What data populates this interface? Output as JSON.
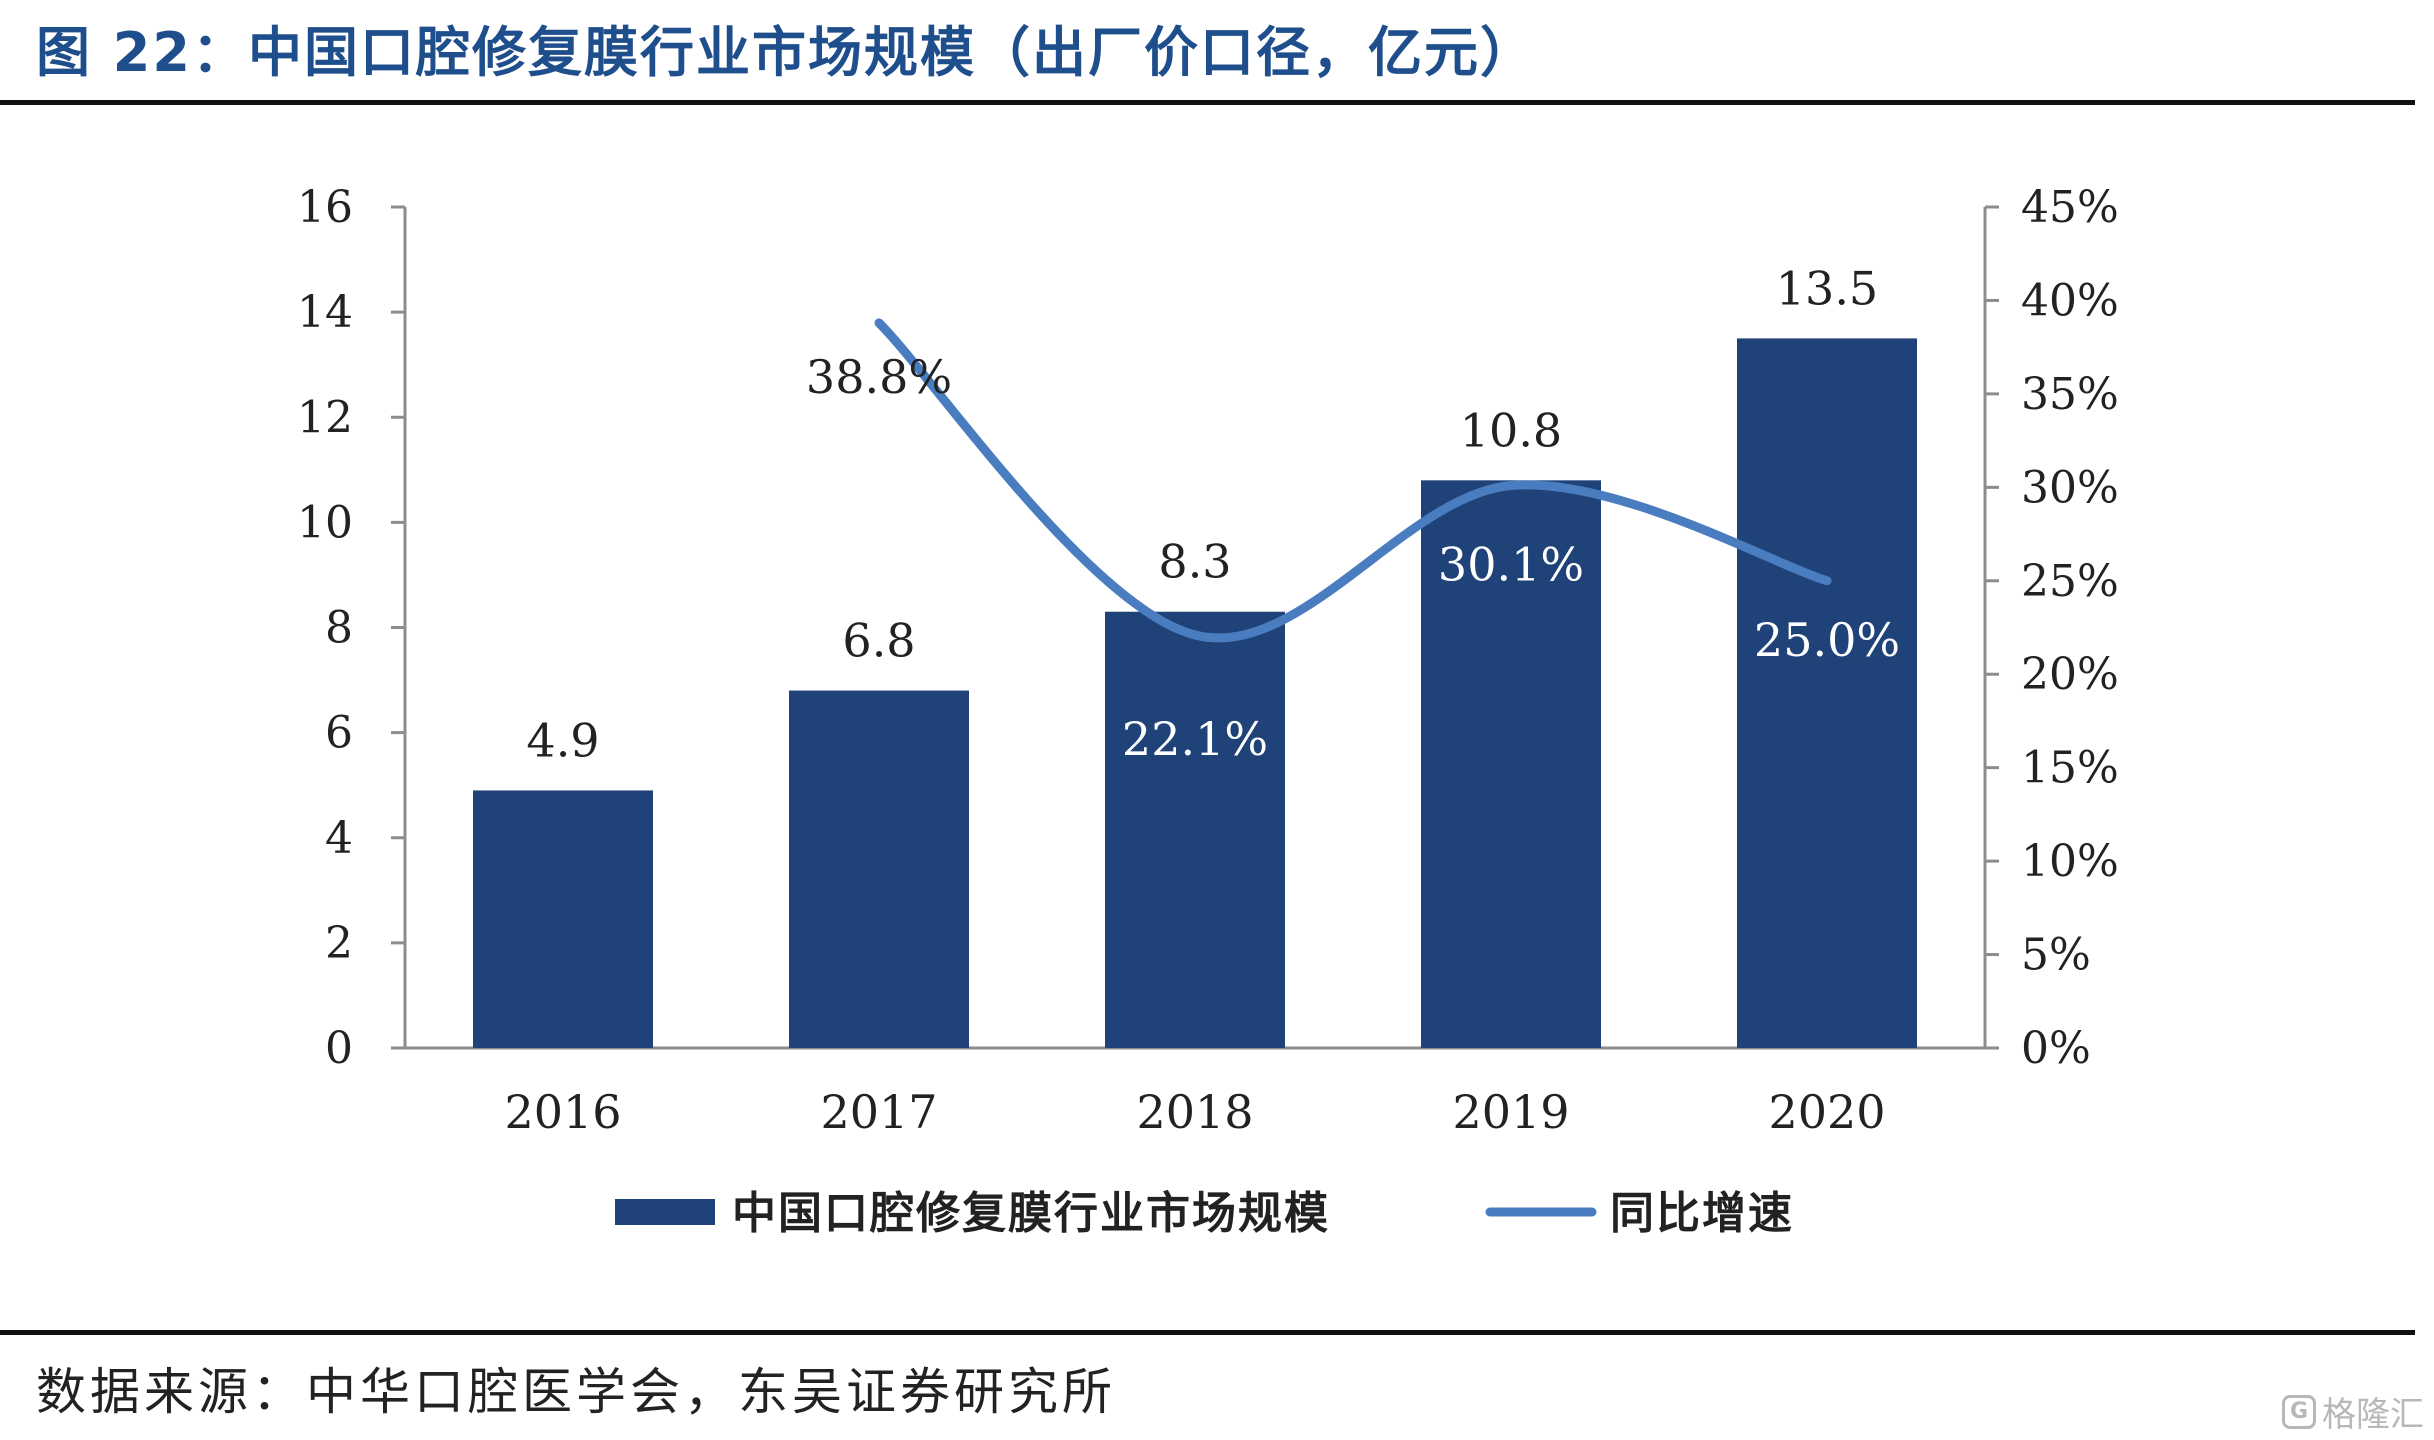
{
  "figure": {
    "title": "图 22：中国口腔修复膜行业市场规模（出厂价口径，亿元）",
    "source": "数据来源：中华口腔医学会，东吴证券研究所",
    "watermark": "格隆汇",
    "watermark_icon": "G"
  },
  "chart_data": {
    "type": "bar",
    "categories": [
      "2016",
      "2017",
      "2018",
      "2019",
      "2020"
    ],
    "y_ticks": [
      "0",
      "2",
      "4",
      "6",
      "8",
      "10",
      "12",
      "14",
      "16"
    ],
    "y2_ticks": [
      "0%",
      "5%",
      "10%",
      "15%",
      "20%",
      "25%",
      "30%",
      "35%",
      "40%",
      "45%"
    ],
    "ylim": [
      0,
      16
    ],
    "y2lim": [
      0,
      45
    ],
    "grid": false,
    "legend_position": "bottom",
    "series": [
      {
        "name": "中国口腔修复膜行业市场规模",
        "type": "bar",
        "axis": "left",
        "color": "#1f4279",
        "values": [
          4.9,
          6.8,
          8.3,
          10.8,
          13.5
        ],
        "labels": [
          "4.9",
          "6.8",
          "8.3",
          "10.8",
          "13.5"
        ]
      },
      {
        "name": "同比增速",
        "type": "line",
        "axis": "right",
        "color": "#4a7cc0",
        "values": [
          null,
          38.8,
          22.1,
          30.1,
          25.0
        ],
        "labels": [
          "",
          "38.8%",
          "22.1%",
          "30.1%",
          "25.0%"
        ]
      }
    ]
  }
}
